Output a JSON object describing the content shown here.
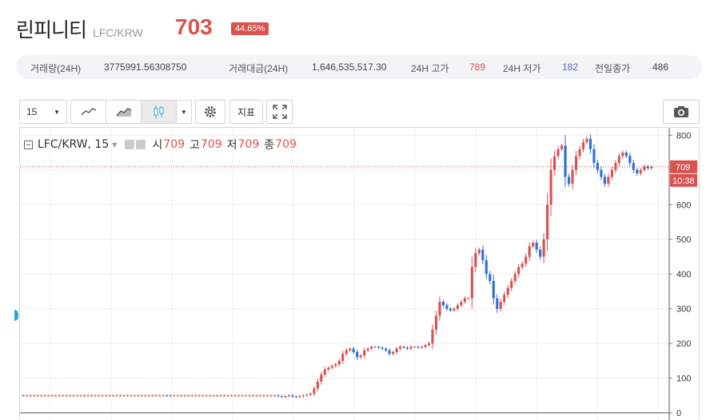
{
  "header": {
    "coin_name": "린피니티",
    "pair": "LFC/KRW",
    "price": "703",
    "change_badge": "44.65%"
  },
  "stats": {
    "volume_label": "거래량(24H)",
    "volume_value": "3775991.56308750",
    "amount_label": "거래대금(24H)",
    "amount_value": "1,646,535,517.30",
    "high_label": "24H 고가",
    "high_value": "789",
    "low_label": "24H 저가",
    "low_value": "182",
    "prev_label": "전일종가",
    "prev_value": "486"
  },
  "toolbar": {
    "interval": "15",
    "indicator_label": "지표"
  },
  "legend": {
    "symbol": "LFC/KRW, 15",
    "open_label": "시",
    "open_value": "709",
    "high_label": "고",
    "high_value": "709",
    "low_label": "저",
    "low_value": "709",
    "close_label": "종",
    "close_value": "709"
  },
  "price_tag": {
    "price": "709",
    "time": "10:38"
  },
  "colors": {
    "up": "#d9534f",
    "down": "#2f6fd6",
    "accent": "#d9534f",
    "low_blue": "#4a67d6"
  },
  "chart_data": {
    "type": "candlestick",
    "ylim": [
      0,
      810
    ],
    "yticks": [
      0,
      100,
      200,
      300,
      400,
      500,
      600,
      700,
      800
    ],
    "last_price": 709,
    "series": [
      {
        "values": [
          50,
          50,
          50,
          50,
          50,
          50,
          50,
          50,
          50,
          50,
          50,
          50,
          50,
          50,
          50,
          50,
          50,
          50,
          50,
          50,
          50,
          50,
          50,
          50,
          50,
          50,
          50,
          50,
          50,
          50,
          50,
          50,
          50,
          50,
          50,
          50,
          50,
          50,
          50,
          50,
          49,
          50,
          50,
          50,
          50,
          50,
          50,
          50,
          50,
          50,
          50,
          50,
          50,
          50,
          50,
          50,
          50,
          50,
          50,
          50,
          50,
          50,
          50,
          50,
          50,
          50,
          50,
          50,
          50,
          50,
          50,
          48,
          46,
          48,
          50,
          47,
          46,
          48,
          50,
          52,
          55,
          70,
          90,
          110,
          125,
          130,
          135,
          140,
          150,
          170,
          180,
          185,
          175,
          160,
          165,
          180,
          185,
          190,
          190,
          188,
          185,
          180,
          170,
          175,
          185,
          190,
          188,
          185,
          190,
          190,
          188,
          190,
          195,
          200,
          240,
          280,
          320,
          310,
          300,
          295,
          300,
          310,
          320,
          330,
          330,
          420,
          460,
          470,
          440,
          400,
          380,
          330,
          300,
          320,
          340,
          360,
          380,
          400,
          420,
          430,
          450,
          480,
          490,
          470,
          450,
          500,
          600,
          700,
          740,
          760,
          770,
          680,
          660,
          700,
          740,
          760,
          780,
          790,
          760,
          720,
          700,
          680,
          660,
          680,
          700,
          720,
          740,
          750,
          740,
          720,
          700,
          690,
          700,
          710,
          705,
          709
        ]
      }
    ]
  }
}
